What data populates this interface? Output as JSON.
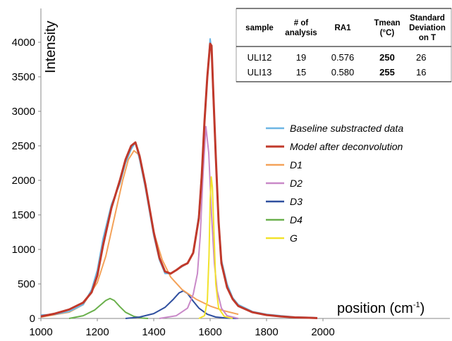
{
  "chart_data": {
    "type": "line",
    "xlabel": "position (cm",
    "xlabel_sup": "-1",
    "xlabel_close": ")",
    "ylabel": "Intensity",
    "xlim": [
      1000,
      2000
    ],
    "ylim": [
      0,
      4000
    ],
    "x_ticks": [
      1000,
      1200,
      1400,
      1600,
      1800,
      2000
    ],
    "y_ticks": [
      0,
      500,
      1000,
      1500,
      2000,
      2500,
      3000,
      3500,
      4000
    ],
    "grid": false,
    "legend_position": "right",
    "colors": {
      "baseline": "#6cb6e4",
      "model": "#c0392b",
      "D1": "#f4a259",
      "D2": "#c989c8",
      "D3": "#2f4f9f",
      "D4": "#6ab04c",
      "G": "#f2e22b"
    },
    "series": [
      {
        "name": "Baseline substracted data",
        "key": "baseline",
        "x": [
          1000,
          1050,
          1100,
          1150,
          1180,
          1200,
          1220,
          1250,
          1280,
          1300,
          1320,
          1335,
          1350,
          1370,
          1400,
          1420,
          1440,
          1460,
          1480,
          1500,
          1520,
          1540,
          1560,
          1570,
          1580,
          1590,
          1600,
          1605,
          1610,
          1620,
          1630,
          1640,
          1660,
          1680,
          1700,
          1750,
          1800,
          1850,
          1900,
          1950,
          1980
        ],
        "y": [
          50,
          60,
          100,
          200,
          420,
          700,
          1150,
          1650,
          1950,
          2250,
          2450,
          2550,
          2300,
          1900,
          1200,
          850,
          650,
          650,
          700,
          750,
          800,
          950,
          1500,
          2100,
          2900,
          3500,
          4050,
          3900,
          3300,
          2300,
          1400,
          850,
          500,
          300,
          200,
          100,
          60,
          40,
          20,
          15,
          10
        ]
      },
      {
        "name": "Model after deconvolution",
        "key": "model",
        "x": [
          1000,
          1050,
          1100,
          1150,
          1180,
          1200,
          1220,
          1250,
          1280,
          1300,
          1320,
          1335,
          1350,
          1370,
          1400,
          1420,
          1440,
          1460,
          1480,
          1500,
          1520,
          1540,
          1560,
          1570,
          1580,
          1590,
          1600,
          1605,
          1610,
          1620,
          1630,
          1640,
          1660,
          1680,
          1700,
          1750,
          1800,
          1850,
          1900,
          1950,
          1980
        ],
        "y": [
          30,
          70,
          130,
          230,
          380,
          620,
          1050,
          1600,
          2000,
          2300,
          2500,
          2550,
          2350,
          1950,
          1250,
          880,
          680,
          650,
          700,
          760,
          800,
          950,
          1450,
          2050,
          2850,
          3500,
          3980,
          3950,
          3400,
          2350,
          1400,
          800,
          450,
          280,
          180,
          90,
          50,
          30,
          15,
          10,
          5
        ]
      },
      {
        "name": "D1",
        "key": "D1",
        "x": [
          1000,
          1100,
          1150,
          1200,
          1230,
          1260,
          1290,
          1310,
          1330,
          1345,
          1360,
          1380,
          1400,
          1430,
          1460,
          1500,
          1550,
          1600,
          1650,
          1700
        ],
        "y": [
          20,
          90,
          200,
          520,
          900,
          1450,
          2000,
          2300,
          2430,
          2380,
          2150,
          1700,
          1250,
          850,
          600,
          420,
          280,
          180,
          110,
          60
        ]
      },
      {
        "name": "D2",
        "key": "D2",
        "x": [
          1420,
          1480,
          1520,
          1540,
          1555,
          1565,
          1575,
          1585,
          1595,
          1605,
          1615,
          1625,
          1640,
          1660,
          1700
        ],
        "y": [
          0,
          40,
          150,
          350,
          650,
          1200,
          2100,
          2780,
          2400,
          1500,
          800,
          400,
          150,
          40,
          0
        ]
      },
      {
        "name": "D3",
        "key": "D3",
        "x": [
          1300,
          1350,
          1400,
          1440,
          1470,
          1490,
          1505,
          1520,
          1540,
          1560,
          1590,
          1620,
          1660,
          1700
        ],
        "y": [
          0,
          20,
          70,
          160,
          280,
          370,
          400,
          360,
          250,
          150,
          60,
          20,
          5,
          0
        ]
      },
      {
        "name": "D4",
        "key": "D4",
        "x": [
          1100,
          1150,
          1190,
          1210,
          1230,
          1245,
          1260,
          1280,
          1300,
          1330,
          1360,
          1380
        ],
        "y": [
          0,
          40,
          120,
          190,
          260,
          290,
          260,
          170,
          90,
          30,
          5,
          0
        ]
      },
      {
        "name": "G",
        "key": "G",
        "x": [
          1560,
          1580,
          1590,
          1596,
          1600,
          1604,
          1608,
          1614,
          1620,
          1630,
          1650,
          1680
        ],
        "y": [
          0,
          40,
          250,
          900,
          1700,
          2050,
          1900,
          1200,
          500,
          150,
          30,
          0
        ]
      }
    ]
  },
  "table": {
    "headers": [
      [
        "sample"
      ],
      [
        "# of",
        "analysis"
      ],
      [
        "RA1"
      ],
      [
        "Tmean",
        "(°C)"
      ],
      [
        "Standard",
        "Deviation",
        "on T"
      ]
    ],
    "rows": [
      [
        "ULI12",
        "19",
        "0.576",
        "250",
        "26"
      ],
      [
        "ULI13",
        "15",
        "0.580",
        "255",
        "16"
      ]
    ]
  }
}
